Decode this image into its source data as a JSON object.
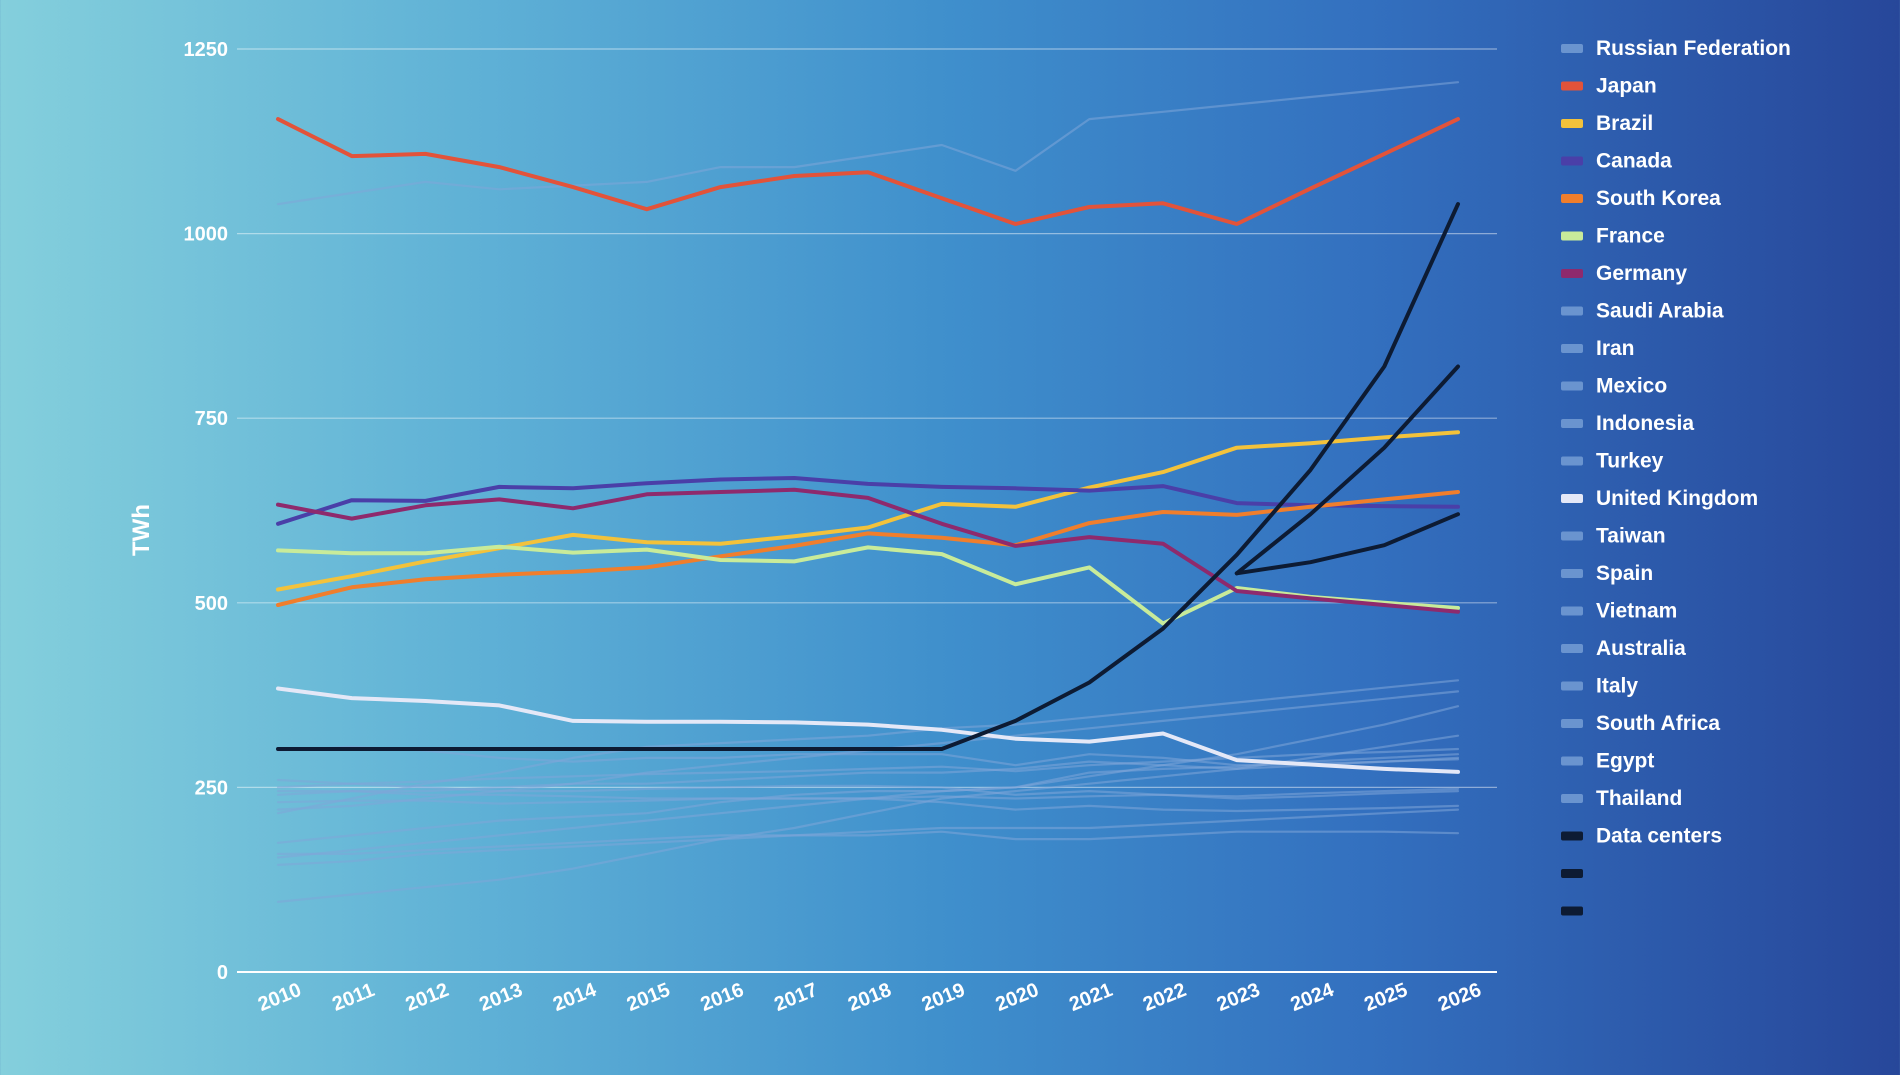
{
  "chart_data": {
    "type": "line",
    "title": "",
    "xlabel": "",
    "ylabel": "TWh",
    "ylim": [
      0,
      1250
    ],
    "yticks": [
      0,
      250,
      500,
      750,
      1000,
      1250
    ],
    "xlim": [
      2010,
      2026
    ],
    "x": [
      2010,
      2011,
      2012,
      2013,
      2014,
      2015,
      2016,
      2017,
      2018,
      2019,
      2020,
      2021,
      2022,
      2023,
      2024,
      2025,
      2026
    ],
    "grid": true,
    "legend_position": "right",
    "series": [
      {
        "name": "Russian Federation",
        "color": "#7fa6d9",
        "highlight": false,
        "x": [
          2010,
          2011,
          2012,
          2013,
          2014,
          2015,
          2016,
          2017,
          2018,
          2019,
          2020,
          2021,
          2022,
          2023,
          2024,
          2025,
          2026
        ],
        "values": [
          1040,
          1055,
          1070,
          1060,
          1065,
          1070,
          1090,
          1090,
          1105,
          1120,
          1085,
          1155,
          1165,
          1175,
          1185,
          1195,
          1205
        ]
      },
      {
        "name": "Japan",
        "color": "#e2533a",
        "highlight": true,
        "x": [
          2010,
          2011,
          2012,
          2013,
          2014,
          2015,
          2016,
          2017,
          2018,
          2019,
          2020,
          2021,
          2022,
          2023,
          2024,
          2025,
          2026
        ],
        "values": [
          1155,
          1105,
          1108,
          1090,
          1063,
          1033,
          1063,
          1078,
          1083,
          1048,
          1013,
          1036,
          1041,
          1013,
          1061,
          1108,
          1155
        ]
      },
      {
        "name": "Brazil",
        "color": "#f3c23b",
        "highlight": true,
        "x": [
          2010,
          2011,
          2012,
          2013,
          2014,
          2015,
          2016,
          2017,
          2018,
          2019,
          2020,
          2021,
          2022,
          2023,
          2024,
          2025,
          2026
        ],
        "values": [
          518,
          536,
          556,
          574,
          592,
          582,
          580,
          590,
          602,
          634,
          630,
          656,
          677,
          710,
          716,
          724,
          731
        ]
      },
      {
        "name": "Canada",
        "color": "#4a3fa8",
        "highlight": true,
        "x": [
          2010,
          2011,
          2012,
          2013,
          2014,
          2015,
          2016,
          2017,
          2018,
          2019,
          2020,
          2021,
          2022,
          2023,
          2024,
          2025,
          2026
        ],
        "values": [
          607,
          639,
          638,
          657,
          655,
          662,
          667,
          669,
          661,
          657,
          655,
          652,
          658,
          635,
          632,
          631,
          630
        ]
      },
      {
        "name": "South Korea",
        "color": "#f07e2c",
        "highlight": true,
        "x": [
          2010,
          2011,
          2012,
          2013,
          2014,
          2015,
          2016,
          2017,
          2018,
          2019,
          2020,
          2021,
          2022,
          2023,
          2024,
          2025,
          2026
        ],
        "values": [
          497,
          521,
          532,
          538,
          542,
          548,
          563,
          577,
          594,
          588,
          578,
          608,
          623,
          619,
          630,
          640,
          650
        ]
      },
      {
        "name": "France",
        "color": "#c8eb9a",
        "highlight": true,
        "x": [
          2010,
          2011,
          2012,
          2013,
          2014,
          2015,
          2016,
          2017,
          2018,
          2019,
          2020,
          2021,
          2022,
          2023,
          2024,
          2025,
          2026
        ],
        "values": [
          571,
          567,
          567,
          576,
          568,
          572,
          558,
          556,
          575,
          566,
          525,
          548,
          472,
          520,
          508,
          500,
          493
        ]
      },
      {
        "name": "Germany",
        "color": "#8e2a6d",
        "highlight": true,
        "x": [
          2010,
          2011,
          2012,
          2013,
          2014,
          2015,
          2016,
          2017,
          2018,
          2019,
          2020,
          2021,
          2022,
          2023,
          2024,
          2025,
          2026
        ],
        "values": [
          633,
          614,
          632,
          640,
          628,
          647,
          650,
          653,
          642,
          607,
          577,
          589,
          580,
          516,
          506,
          497,
          488
        ]
      },
      {
        "name": "Saudi Arabia",
        "color": "#7fa6d9",
        "highlight": false,
        "x": [
          2010,
          2011,
          2012,
          2013,
          2014,
          2015,
          2016,
          2017,
          2018,
          2019,
          2020,
          2021,
          2022,
          2023,
          2024,
          2025,
          2026
        ],
        "values": [
          215,
          235,
          255,
          270,
          290,
          305,
          310,
          315,
          320,
          330,
          335,
          345,
          355,
          365,
          375,
          385,
          395
        ]
      },
      {
        "name": "Iran",
        "color": "#7fa6d9",
        "highlight": false,
        "x": [
          2010,
          2011,
          2012,
          2013,
          2014,
          2015,
          2016,
          2017,
          2018,
          2019,
          2020,
          2021,
          2022,
          2023,
          2024,
          2025,
          2026
        ],
        "values": [
          220,
          225,
          235,
          245,
          255,
          270,
          280,
          290,
          300,
          310,
          320,
          330,
          340,
          350,
          360,
          370,
          380
        ]
      },
      {
        "name": "Mexico",
        "color": "#7fa6d9",
        "highlight": false,
        "x": [
          2010,
          2011,
          2012,
          2013,
          2014,
          2015,
          2016,
          2017,
          2018,
          2019,
          2020,
          2021,
          2022,
          2023,
          2024,
          2025,
          2026
        ],
        "values": [
          250,
          255,
          258,
          262,
          265,
          268,
          270,
          272,
          275,
          278,
          272,
          280,
          285,
          290,
          295,
          298,
          302
        ]
      },
      {
        "name": "Indonesia",
        "color": "#7fa6d9",
        "highlight": false,
        "x": [
          2010,
          2011,
          2012,
          2013,
          2014,
          2015,
          2016,
          2017,
          2018,
          2019,
          2020,
          2021,
          2022,
          2023,
          2024,
          2025,
          2026
        ],
        "values": [
          155,
          165,
          175,
          185,
          195,
          205,
          215,
          225,
          235,
          245,
          250,
          265,
          280,
          295,
          315,
          335,
          360
        ]
      },
      {
        "name": "Turkey",
        "color": "#7fa6d9",
        "highlight": false,
        "x": [
          2010,
          2011,
          2012,
          2013,
          2014,
          2015,
          2016,
          2017,
          2018,
          2019,
          2020,
          2021,
          2022,
          2023,
          2024,
          2025,
          2026
        ],
        "values": [
          175,
          185,
          195,
          205,
          210,
          215,
          230,
          240,
          245,
          245,
          250,
          270,
          275,
          278,
          285,
          290,
          295
        ]
      },
      {
        "name": "United Kingdom",
        "color": "#e4e8f7",
        "highlight": true,
        "x": [
          2010,
          2011,
          2012,
          2013,
          2014,
          2015,
          2016,
          2017,
          2018,
          2019,
          2020,
          2021,
          2022,
          2023,
          2024,
          2025,
          2026
        ],
        "values": [
          384,
          371,
          367,
          361,
          340,
          339,
          339,
          338,
          335,
          328,
          316,
          312,
          323,
          287,
          281,
          275,
          271
        ]
      },
      {
        "name": "Taiwan",
        "color": "#7fa6d9",
        "highlight": false,
        "x": [
          2010,
          2011,
          2012,
          2013,
          2014,
          2015,
          2016,
          2017,
          2018,
          2019,
          2020,
          2021,
          2022,
          2023,
          2024,
          2025,
          2026
        ],
        "values": [
          240,
          245,
          245,
          250,
          255,
          255,
          260,
          265,
          270,
          270,
          275,
          285,
          280,
          275,
          280,
          285,
          290
        ]
      },
      {
        "name": "Spain",
        "color": "#7fa6d9",
        "highlight": false,
        "x": [
          2010,
          2011,
          2012,
          2013,
          2014,
          2015,
          2016,
          2017,
          2018,
          2019,
          2020,
          2021,
          2022,
          2023,
          2024,
          2025,
          2026
        ],
        "values": [
          260,
          255,
          250,
          245,
          245,
          248,
          250,
          252,
          252,
          250,
          240,
          245,
          240,
          235,
          238,
          242,
          245
        ]
      },
      {
        "name": "Vietnam",
        "color": "#7fa6d9",
        "highlight": false,
        "x": [
          2010,
          2011,
          2012,
          2013,
          2014,
          2015,
          2016,
          2017,
          2018,
          2019,
          2020,
          2021,
          2022,
          2023,
          2024,
          2025,
          2026
        ],
        "values": [
          95,
          105,
          115,
          125,
          140,
          160,
          180,
          195,
          215,
          235,
          245,
          255,
          265,
          275,
          290,
          305,
          320
        ]
      },
      {
        "name": "Australia",
        "color": "#7fa6d9",
        "highlight": false,
        "x": [
          2010,
          2011,
          2012,
          2013,
          2014,
          2015,
          2016,
          2017,
          2018,
          2019,
          2020,
          2021,
          2022,
          2023,
          2024,
          2025,
          2026
        ],
        "values": [
          230,
          232,
          232,
          228,
          230,
          232,
          235,
          235,
          235,
          238,
          235,
          238,
          240,
          238,
          242,
          245,
          248
        ]
      },
      {
        "name": "Italy",
        "color": "#7fa6d9",
        "highlight": false,
        "x": [
          2010,
          2011,
          2012,
          2013,
          2014,
          2015,
          2016,
          2017,
          2018,
          2019,
          2020,
          2021,
          2022,
          2023,
          2024,
          2025,
          2026
        ],
        "values": [
          300,
          305,
          300,
          290,
          285,
          290,
          290,
          295,
          295,
          295,
          280,
          295,
          290,
          280,
          282,
          285,
          288
        ]
      },
      {
        "name": "South Africa",
        "color": "#7fa6d9",
        "highlight": false,
        "x": [
          2010,
          2011,
          2012,
          2013,
          2014,
          2015,
          2016,
          2017,
          2018,
          2019,
          2020,
          2021,
          2022,
          2023,
          2024,
          2025,
          2026
        ],
        "values": [
          245,
          245,
          240,
          240,
          238,
          235,
          235,
          235,
          235,
          230,
          220,
          225,
          220,
          218,
          220,
          222,
          225
        ]
      },
      {
        "name": "Egypt",
        "color": "#7fa6d9",
        "highlight": false,
        "x": [
          2010,
          2011,
          2012,
          2013,
          2014,
          2015,
          2016,
          2017,
          2018,
          2019,
          2020,
          2021,
          2022,
          2023,
          2024,
          2025,
          2026
        ],
        "values": [
          145,
          150,
          160,
          165,
          170,
          175,
          180,
          185,
          185,
          190,
          180,
          180,
          185,
          190,
          190,
          190,
          188
        ]
      },
      {
        "name": "Thailand",
        "color": "#7fa6d9",
        "highlight": false,
        "x": [
          2010,
          2011,
          2012,
          2013,
          2014,
          2015,
          2016,
          2017,
          2018,
          2019,
          2020,
          2021,
          2022,
          2023,
          2024,
          2025,
          2026
        ],
        "values": [
          160,
          160,
          165,
          170,
          175,
          180,
          185,
          185,
          190,
          195,
          195,
          195,
          200,
          205,
          210,
          215,
          220
        ]
      },
      {
        "name": "Data centers",
        "color": "#0d1b33",
        "highlight": true,
        "x": [
          2010,
          2011,
          2012,
          2013,
          2014,
          2015,
          2016,
          2017,
          2018,
          2019,
          2020,
          2021,
          2022,
          2023,
          2024,
          2025,
          2026
        ],
        "values": [
          302,
          302,
          302,
          302,
          302,
          302,
          302,
          302,
          302,
          302,
          340,
          392,
          465,
          565,
          680,
          820,
          1040
        ]
      },
      {
        "name": "",
        "color": "#0d1b33",
        "highlight": true,
        "x": [
          2023,
          2024,
          2025,
          2026
        ],
        "values": [
          540,
          620,
          710,
          820
        ]
      },
      {
        "name": "",
        "color": "#0d1b33",
        "highlight": true,
        "x": [
          2023,
          2024,
          2025,
          2026
        ],
        "values": [
          540,
          555,
          578,
          620
        ]
      }
    ]
  }
}
